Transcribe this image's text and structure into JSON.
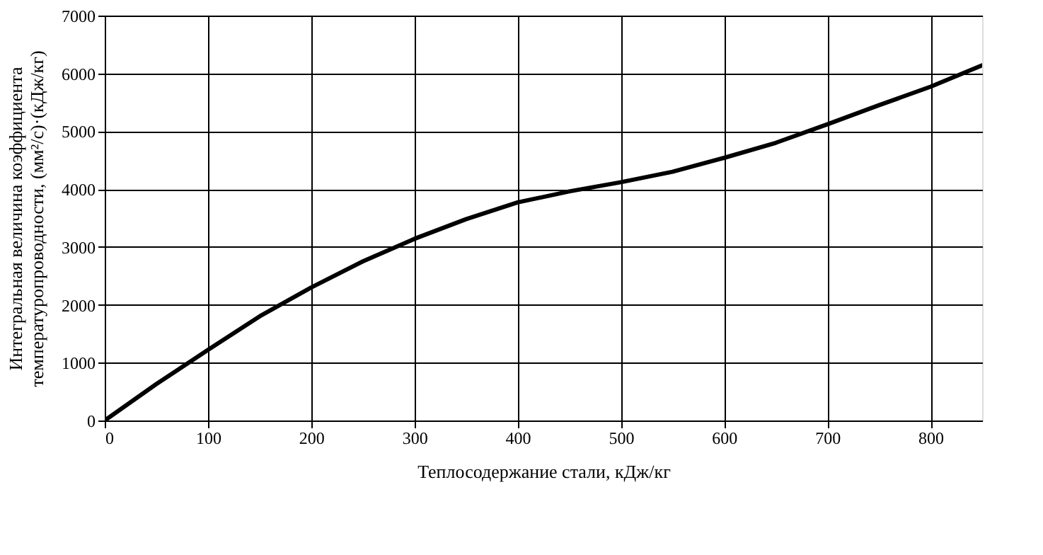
{
  "chart_data": {
    "type": "line",
    "xlabel": "Теплосодержание стали, кДж/кг",
    "ylabel": [
      "Интегральная величина коэффициента",
      "температуропроводности, (мм²/с)·(кДж/кг)"
    ],
    "x": [
      0,
      50,
      100,
      150,
      200,
      250,
      300,
      350,
      400,
      450,
      500,
      550,
      600,
      650,
      700,
      750,
      800,
      850
    ],
    "series": [
      {
        "color": "#000000",
        "values": [
          0,
          630,
          1220,
          1800,
          2300,
          2750,
          3140,
          3480,
          3770,
          3960,
          4120,
          4300,
          4540,
          4800,
          5120,
          5450,
          5770,
          6140
        ]
      }
    ],
    "xlim": [
      0,
      850
    ],
    "xticks": [
      0,
      100,
      200,
      300,
      400,
      500,
      600,
      700,
      800
    ],
    "ylim": [
      0,
      7000
    ],
    "yticks": [
      0,
      1000,
      2000,
      3000,
      4000,
      5000,
      6000,
      7000
    ],
    "grid": true,
    "marker": "none",
    "line_style": "solid",
    "legend": false
  }
}
